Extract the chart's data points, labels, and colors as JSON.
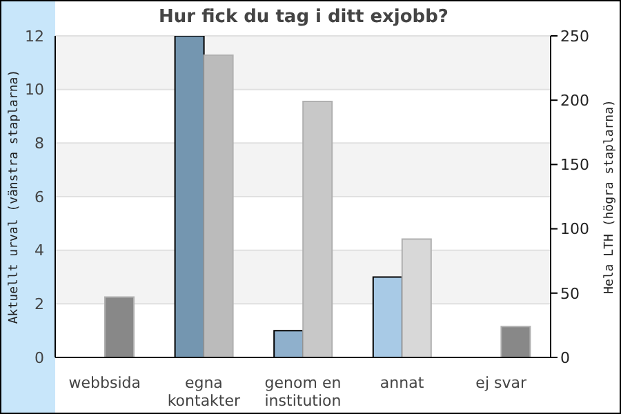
{
  "chart_data": {
    "type": "bar",
    "title": "Hur fick du tag i ditt exjobb?",
    "ylabel": "Aktuellt urval (vänstra staplarna)",
    "y2label": "Hela LTH (högra staplarna)",
    "categories": [
      "webbsida",
      "egna kontakter",
      "genom en institution",
      "annat",
      "ej svar"
    ],
    "series": [
      {
        "values": [
          0,
          12,
          1,
          3,
          0
        ],
        "colors": [
          "#7496b0",
          "#7496b0",
          "#8fb0cc",
          "#a8cae6",
          "#a8cae6"
        ]
      },
      {
        "values": [
          47,
          235,
          199,
          92,
          24
        ],
        "axis": "y2",
        "colors": [
          "#888888",
          "#bbbbbb",
          "#c8c8c8",
          "#d8d8d8",
          "#888888"
        ]
      }
    ],
    "ylim": [
      0,
      12
    ],
    "yticks": [
      0,
      2,
      4,
      6,
      8,
      10,
      12
    ],
    "y2lim": [
      0,
      250
    ],
    "y2ticks": [
      0,
      50,
      100,
      150,
      200,
      250
    ],
    "grid": "y"
  }
}
